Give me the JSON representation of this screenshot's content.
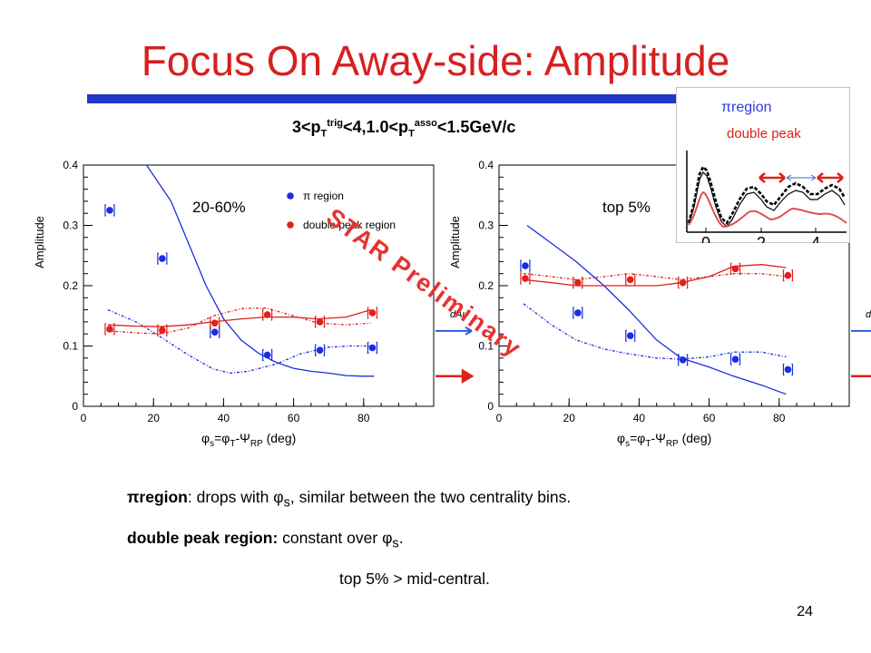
{
  "slide": {
    "title": "Focus On Away-side: Amplitude",
    "subtitle": {
      "a": "3<p",
      "b": "T",
      "c": "trig",
      "d": "<4,1.0<p",
      "e": "T",
      "f": "asso",
      "g": "<1.5GeV/c"
    },
    "watermark": "STAR Preliminary",
    "page_number": "24",
    "colors": {
      "title": "#d6201f",
      "accent_bar": "#1f36c8",
      "blue": "#1a2ee0",
      "red": "#e0201a"
    },
    "bullets": [
      {
        "bold": "πregion",
        "text": ":  drops with φ",
        "sub": "s",
        "tail": ", similar between the two centrality bins."
      },
      {
        "bold": "double peak region:",
        "text": "  constant over φ",
        "sub": "s",
        "tail": "."
      },
      {
        "bold": "",
        "text": "top 5%  >  mid-central.",
        "sub": "",
        "tail": ""
      }
    ]
  },
  "chart_data": [
    {
      "type": "scatter",
      "label": "20-60%",
      "xlabel": {
        "a": "φ",
        "b": "s",
        "c": "=φ",
        "d": "T",
        "e": "-Ψ",
        "f": "RP",
        "g": " (deg)"
      },
      "ylabel": "Amplitude",
      "xlim": [
        0,
        100
      ],
      "ylim": [
        0,
        0.4
      ],
      "xticks": [
        "0",
        "20",
        "40",
        "60",
        "80"
      ],
      "yticks": [
        "0",
        "0.1",
        "0.2",
        "0.3",
        "0.4"
      ],
      "legend": [
        "π region",
        "double peak region"
      ],
      "dAu": "dAu",
      "series": [
        {
          "name": "π region",
          "x": [
            7.5,
            22.5,
            37.5,
            52.5,
            67.5,
            82.5
          ],
          "y": [
            0.325,
            0.245,
            0.123,
            0.085,
            0.093,
            0.097
          ]
        },
        {
          "name": "double peak region",
          "x": [
            7.5,
            22.5,
            37.5,
            52.5,
            67.5,
            82.5
          ],
          "y": [
            0.128,
            0.126,
            0.138,
            0.152,
            0.14,
            0.155
          ]
        }
      ],
      "curves": {
        "blue_solid": {
          "x": [
            18,
            25,
            30,
            35,
            40,
            45,
            50,
            55,
            60,
            65,
            70,
            75,
            80,
            83
          ],
          "y": [
            0.4,
            0.34,
            0.27,
            0.2,
            0.145,
            0.11,
            0.088,
            0.073,
            0.063,
            0.058,
            0.055,
            0.051,
            0.05,
            0.05
          ]
        },
        "blue_dash": {
          "x": [
            7,
            15,
            22,
            30,
            37,
            42,
            47,
            55,
            62,
            70,
            76,
            82
          ],
          "y": [
            0.16,
            0.14,
            0.115,
            0.085,
            0.062,
            0.055,
            0.058,
            0.07,
            0.087,
            0.098,
            0.1,
            0.1
          ]
        },
        "red_solid": {
          "x": [
            7,
            15,
            22,
            30,
            37,
            45,
            52,
            60,
            67,
            75,
            82
          ],
          "y": [
            0.135,
            0.133,
            0.132,
            0.135,
            0.14,
            0.145,
            0.148,
            0.148,
            0.145,
            0.148,
            0.16
          ]
        },
        "red_dash": {
          "x": [
            7,
            15,
            22,
            30,
            37,
            45,
            52,
            60,
            67,
            75,
            82
          ],
          "y": [
            0.125,
            0.122,
            0.12,
            0.13,
            0.15,
            0.162,
            0.163,
            0.15,
            0.138,
            0.135,
            0.138
          ]
        }
      }
    },
    {
      "type": "scatter",
      "label": "top 5%",
      "xlabel": {
        "a": "φ",
        "b": "s",
        "c": "=φ",
        "d": "T",
        "e": "-Ψ",
        "f": "RP",
        "g": " (deg)"
      },
      "ylabel": "Amplitude",
      "xlim": [
        0,
        100
      ],
      "ylim": [
        0,
        0.4
      ],
      "xticks": [
        "0",
        "20",
        "40",
        "60",
        "80"
      ],
      "yticks": [
        "0",
        "0.1",
        "0.2",
        "0.3",
        "0.4"
      ],
      "dAu": "dAu",
      "series": [
        {
          "name": "π region",
          "x": [
            7.5,
            22.5,
            37.5,
            52.5,
            67.5,
            82.5
          ],
          "y": [
            0.233,
            0.155,
            0.117,
            0.077,
            0.078,
            0.061
          ]
        },
        {
          "name": "double peak region",
          "x": [
            7.5,
            22.5,
            37.5,
            52.5,
            67.5,
            82.5
          ],
          "y": [
            0.212,
            0.205,
            0.21,
            0.205,
            0.228,
            0.217
          ]
        }
      ],
      "curves": {
        "blue_solid": {
          "x": [
            8,
            15,
            22,
            30,
            37,
            45,
            52,
            60,
            67,
            75,
            82
          ],
          "y": [
            0.3,
            0.27,
            0.24,
            0.2,
            0.16,
            0.11,
            0.08,
            0.065,
            0.05,
            0.035,
            0.02
          ]
        },
        "blue_dash": {
          "x": [
            7,
            15,
            22,
            30,
            37,
            45,
            52,
            60,
            67,
            75,
            82
          ],
          "y": [
            0.17,
            0.135,
            0.11,
            0.095,
            0.087,
            0.08,
            0.078,
            0.082,
            0.09,
            0.09,
            0.082
          ]
        },
        "red_solid": {
          "x": [
            7,
            15,
            22,
            30,
            37,
            45,
            52,
            60,
            67,
            75,
            82
          ],
          "y": [
            0.21,
            0.205,
            0.2,
            0.2,
            0.2,
            0.2,
            0.205,
            0.215,
            0.232,
            0.235,
            0.23
          ]
        },
        "red_dash": {
          "x": [
            7,
            15,
            22,
            30,
            37,
            45,
            52,
            60,
            67,
            75,
            82
          ],
          "y": [
            0.22,
            0.215,
            0.21,
            0.215,
            0.22,
            0.215,
            0.21,
            0.215,
            0.22,
            0.22,
            0.215
          ]
        }
      }
    }
  ],
  "inset": {
    "label_pi": "πregion",
    "label_dp": "double peak",
    "xticks": [
      "0",
      "2",
      "4"
    ]
  }
}
